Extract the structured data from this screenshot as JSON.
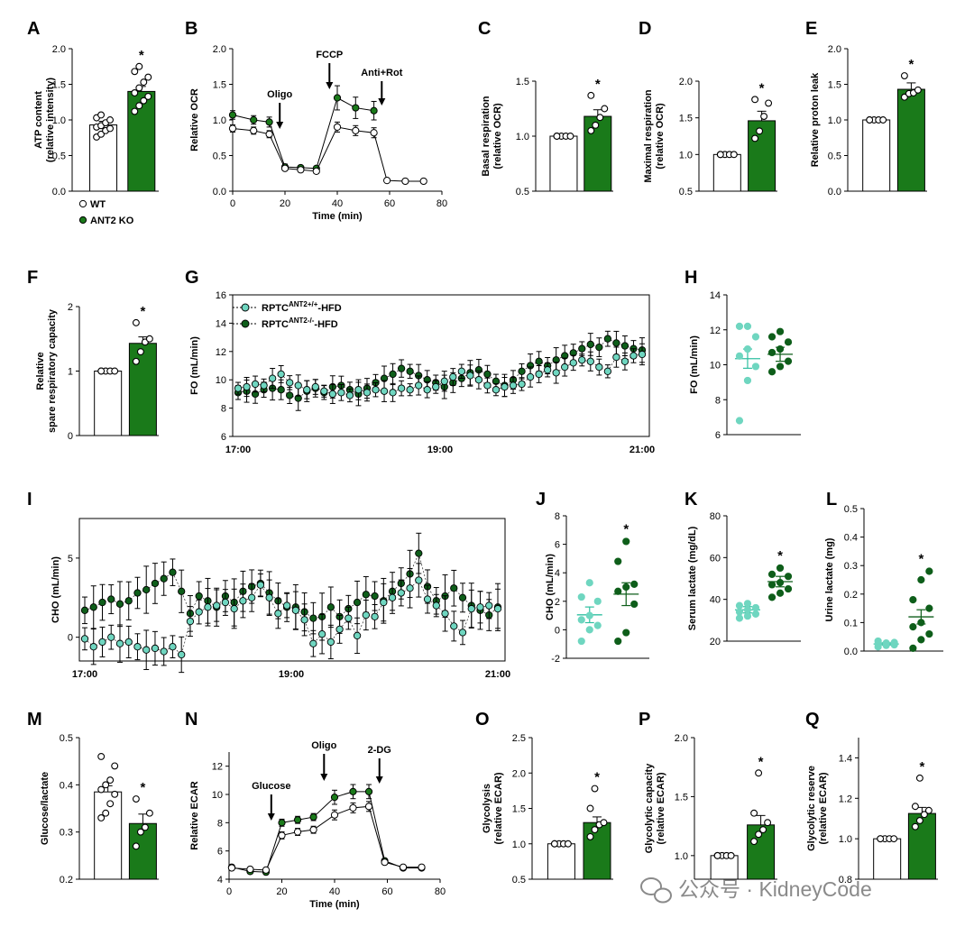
{
  "colors": {
    "wt_fill": "#ffffff",
    "ko_fill": "#1a7a1a",
    "light_green": "#6fd6c0",
    "dark_green": "#0e5e1a",
    "axis": "#000000",
    "watermark": "#8a8a8a"
  },
  "legend_A": {
    "wt": "WT",
    "ko": "ANT2 KO"
  },
  "legend_G": {
    "a_base": "RPTC",
    "a_sup": "ANT2+/+",
    "a_suf": "-HFD",
    "b_base": "RPTC",
    "b_sup": "ANT2-/-",
    "b_suf": "-HFD"
  },
  "watermark": "公众号 · KidneyCode",
  "chart_data": [
    {
      "panel": "A",
      "type": "bar",
      "ylabel": "ATP content\n(relative intensity)",
      "ylim": [
        0,
        2.0
      ],
      "yticks": [
        "0.0",
        "0.5",
        "1.0",
        "1.5",
        "2.0"
      ],
      "categories": [
        "WT",
        "ANT2 KO"
      ],
      "values": [
        0.93,
        1.4
      ],
      "errors": [
        0.05,
        0.07
      ],
      "points": [
        [
          0.76,
          0.8,
          0.85,
          0.88,
          0.9,
          0.92,
          0.96,
          1.0,
          1.03,
          1.07
        ],
        [
          1.12,
          1.2,
          1.27,
          1.33,
          1.38,
          1.45,
          1.53,
          1.6,
          1.68,
          1.75
        ]
      ],
      "significance": "*"
    },
    {
      "panel": "B",
      "type": "line",
      "title": "",
      "xlabel": "Time (min)",
      "ylabel": "Relative OCR",
      "xlim": [
        0,
        80
      ],
      "ylim": [
        0,
        2.0
      ],
      "xticks": [
        "0",
        "20",
        "40",
        "60",
        "80"
      ],
      "yticks": [
        "0.0",
        "0.5",
        "1.0",
        "1.5",
        "2.0"
      ],
      "annotations": [
        "Oligo",
        "FCCP",
        "Anti+Rot"
      ],
      "series": [
        {
          "name": "WT",
          "x": [
            0,
            8,
            14,
            20,
            26,
            32,
            40,
            47,
            54,
            59,
            66,
            73
          ],
          "y": [
            0.88,
            0.85,
            0.8,
            0.32,
            0.3,
            0.28,
            0.9,
            0.85,
            0.82,
            0.15,
            0.14,
            0.14
          ],
          "err": [
            0.05,
            0.05,
            0.05,
            0.03,
            0.03,
            0.03,
            0.07,
            0.07,
            0.07,
            0.02,
            0.02,
            0.02
          ]
        },
        {
          "name": "ANT2 KO",
          "x": [
            0,
            8,
            14,
            20,
            26,
            32,
            40,
            47,
            54
          ],
          "y": [
            1.07,
            1.0,
            0.97,
            0.34,
            0.33,
            0.32,
            1.31,
            1.17,
            1.13
          ],
          "err": [
            0.06,
            0.06,
            0.07,
            0.04,
            0.03,
            0.03,
            0.17,
            0.15,
            0.13
          ]
        }
      ]
    },
    {
      "panel": "C",
      "type": "bar",
      "ylabel": "Basal respiration\n(relative OCR)",
      "ylim": [
        0.5,
        1.5
      ],
      "yticks": [
        "0.5",
        "1.0",
        "1.5"
      ],
      "categories": [
        "WT",
        "ANT2 KO"
      ],
      "values": [
        1.0,
        1.18
      ],
      "errors": [
        0.0,
        0.06
      ],
      "points": [
        [
          1,
          1,
          1,
          1,
          1
        ],
        [
          1.05,
          1.1,
          1.17,
          1.25,
          1.37
        ]
      ],
      "significance": "*"
    },
    {
      "panel": "D",
      "type": "bar",
      "ylabel": "Maximal respiration\n(relative OCR)",
      "ylim": [
        0.5,
        2.0
      ],
      "yticks": [
        "0.5",
        "1.0",
        "1.5",
        "2.0"
      ],
      "categories": [
        "WT",
        "ANT2 KO"
      ],
      "values": [
        1.0,
        1.46
      ],
      "errors": [
        0.0,
        0.13
      ],
      "points": [
        [
          1,
          1,
          1,
          1,
          1
        ],
        [
          1.22,
          1.32,
          1.52,
          1.7,
          1.75
        ]
      ],
      "significance": "*"
    },
    {
      "panel": "E",
      "type": "bar",
      "ylabel": "Relative proton leak",
      "ylim": [
        0,
        2.0
      ],
      "yticks": [
        "0.0",
        "0.5",
        "1.0",
        "1.5",
        "2.0"
      ],
      "categories": [
        "WT",
        "ANT2 KO"
      ],
      "values": [
        1.0,
        1.43
      ],
      "errors": [
        0.0,
        0.09
      ],
      "points": [
        [
          1,
          1,
          1,
          1,
          1
        ],
        [
          1.32,
          1.37,
          1.38,
          1.42,
          1.62
        ]
      ],
      "significance": "*"
    },
    {
      "panel": "F",
      "type": "bar",
      "ylabel": "Relative\nspare respiratory capacity",
      "ylim": [
        0,
        2
      ],
      "yticks": [
        "0",
        "1",
        "2"
      ],
      "categories": [
        "WT",
        "ANT2 KO"
      ],
      "values": [
        1.0,
        1.43
      ],
      "errors": [
        0.0,
        0.1
      ],
      "points": [
        [
          1,
          1,
          1,
          1,
          1
        ],
        [
          1.15,
          1.3,
          1.45,
          1.5,
          1.75
        ]
      ],
      "significance": "*"
    },
    {
      "panel": "G",
      "type": "line",
      "ylabel": "FO (mL/min)",
      "ylim": [
        6,
        16
      ],
      "yticks": [
        "6",
        "8",
        "10",
        "12",
        "14",
        "16"
      ],
      "xticks": [
        "17:00",
        "19:00",
        "21:00"
      ],
      "xtick_pos": [
        0,
        120,
        240
      ],
      "xlim": [
        0,
        240
      ],
      "series_seed": {
        "n": 48,
        "dt": 5
      },
      "series": [
        {
          "name": "RPTC ANT2+/+ -HFD",
          "y": [
            9.4,
            9.5,
            9.7,
            9.6,
            10.1,
            10.4,
            9.8,
            9.6,
            9.3,
            9.5,
            9.2,
            9.0,
            9.1,
            8.9,
            9.3,
            9.1,
            9.3,
            9.2,
            9.1,
            9.4,
            9.3,
            9.6,
            9.3,
            9.5,
            9.9,
            10.2,
            10.6,
            10.3,
            10.0,
            9.6,
            9.3,
            9.5,
            9.6,
            9.7,
            10.2,
            10.4,
            10.7,
            10.5,
            10.9,
            11.2,
            11.4,
            11.3,
            10.9,
            10.6,
            11.6,
            11.3,
            11.7,
            11.8
          ],
          "err": 0.6
        },
        {
          "name": "RPTC ANT2-/- -HFD",
          "y": [
            9.1,
            9.2,
            9.0,
            9.3,
            9.4,
            9.3,
            8.9,
            8.7,
            9.2,
            9.4,
            9.1,
            9.5,
            9.6,
            9.3,
            9.0,
            9.4,
            9.8,
            10.1,
            10.4,
            10.8,
            10.6,
            10.3,
            10.0,
            9.8,
            9.5,
            9.8,
            10.1,
            10.5,
            10.7,
            10.4,
            9.9,
            9.6,
            10.0,
            10.6,
            11.0,
            11.3,
            11.0,
            11.4,
            11.7,
            11.9,
            12.2,
            12.5,
            12.3,
            12.9,
            12.6,
            12.4,
            12.2,
            12.1
          ],
          "err": 0.7
        }
      ]
    },
    {
      "panel": "H",
      "type": "scatter",
      "ylabel": "FO (mL/min)",
      "ylim": [
        6,
        14
      ],
      "yticks": [
        "6",
        "8",
        "10",
        "12",
        "14"
      ],
      "categories": [
        "RPTC ANT2+/+ -HFD",
        "RPTC ANT2-/- -HFD"
      ],
      "means": [
        10.35,
        10.6
      ],
      "errors": [
        0.55,
        0.4
      ],
      "points": [
        [
          6.8,
          9.1,
          9.9,
          10.5,
          10.9,
          11.6,
          12.2,
          12.2
        ],
        [
          9.6,
          9.9,
          10.2,
          10.7,
          10.9,
          11.3,
          11.6,
          11.9
        ]
      ]
    },
    {
      "panel": "I",
      "type": "line",
      "ylabel": "CHO (mL/min)",
      "ylim": [
        -1.5,
        7.5
      ],
      "yticks": [
        "0",
        "5"
      ],
      "xticks": [
        "17:00",
        "19:00",
        "21:00"
      ],
      "xtick_pos": [
        0,
        120,
        240
      ],
      "xlim": [
        0,
        240
      ],
      "series": [
        {
          "name": "RPTC ANT2+/+ -HFD",
          "y": [
            -0.1,
            -0.6,
            -0.3,
            0.0,
            -0.4,
            -0.3,
            -0.6,
            -0.8,
            -0.7,
            -0.9,
            -0.6,
            -1.1,
            1.0,
            1.6,
            1.9,
            2.0,
            2.2,
            1.8,
            2.3,
            2.5,
            3.3,
            2.5,
            1.5,
            2.0,
            1.7,
            1.1,
            -0.4,
            0.2,
            -0.3,
            0.5,
            1.2,
            0.1,
            1.4,
            1.3,
            2.2,
            2.5,
            2.8,
            3.1,
            3.6,
            2.4,
            2.0,
            1.5,
            0.7,
            0.3,
            1.8,
            1.9,
            2.0,
            1.8
          ],
          "err": 1.0
        },
        {
          "name": "RPTC ANT2-/- -HFD",
          "y": [
            1.7,
            1.9,
            2.2,
            2.4,
            2.1,
            2.3,
            2.8,
            3.0,
            3.4,
            3.7,
            4.1,
            2.9,
            1.5,
            2.6,
            2.3,
            1.9,
            2.6,
            2.2,
            2.9,
            3.2,
            3.4,
            2.8,
            2.3,
            1.9,
            1.9,
            1.6,
            1.2,
            1.3,
            1.9,
            1.3,
            1.8,
            2.2,
            2.7,
            2.6,
            2.3,
            2.9,
            3.4,
            4.0,
            5.3,
            3.2,
            2.3,
            2.6,
            3.1,
            2.5,
            2.0,
            1.7,
            1.4,
            1.9
          ],
          "err": 1.2
        }
      ]
    },
    {
      "panel": "J",
      "type": "scatter",
      "ylabel": "CHO (mL/min)",
      "ylim": [
        -2,
        8
      ],
      "yticks": [
        "-2",
        "0",
        "2",
        "4",
        "6",
        "8"
      ],
      "categories": [
        "RPTC ANT2+/+ -HFD",
        "RPTC ANT2-/- -HFD"
      ],
      "means": [
        1.05,
        2.5
      ],
      "errors": [
        0.55,
        0.8
      ],
      "points": [
        [
          -0.8,
          0.0,
          0.3,
          0.7,
          1.0,
          2.0,
          2.3,
          3.3
        ],
        [
          -0.8,
          -0.2,
          1.8,
          2.7,
          3.0,
          3.2,
          4.8,
          6.2
        ]
      ],
      "significance": "*"
    },
    {
      "panel": "K",
      "type": "scatter",
      "ylabel": "Serum lactate (mg/dL)",
      "ylim": [
        20,
        80
      ],
      "yticks": [
        "20",
        "40",
        "60",
        "80"
      ],
      "categories": [
        "RPTC ANT2+/+ -HFD",
        "RPTC ANT2-/- -HFD"
      ],
      "means": [
        35.0,
        48.5
      ],
      "errors": [
        1.5,
        2.5
      ],
      "points": [
        [
          31,
          32,
          33,
          34,
          35,
          36,
          37,
          38
        ],
        [
          41,
          43,
          45,
          47,
          48,
          51,
          52,
          55
        ]
      ],
      "significance": "*"
    },
    {
      "panel": "L",
      "type": "scatter",
      "ylabel": "Urine lactate (mg)",
      "ylim": [
        0,
        0.5
      ],
      "yticks": [
        "0.0",
        "0.1",
        "0.2",
        "0.3",
        "0.4",
        "0.5"
      ],
      "categories": [
        "RPTC ANT2+/+ -HFD",
        "RPTC ANT2-/- -HFD"
      ],
      "means": [
        0.025,
        0.12
      ],
      "errors": [
        0.004,
        0.025
      ],
      "points": [
        [
          0.015,
          0.02,
          0.022,
          0.025,
          0.028,
          0.03,
          0.035
        ],
        [
          0.01,
          0.04,
          0.06,
          0.085,
          0.1,
          0.15,
          0.18,
          0.25,
          0.28
        ]
      ],
      "significance": "*"
    },
    {
      "panel": "M",
      "type": "bar",
      "ylabel": "Glucose/lactate",
      "ylim": [
        0.2,
        0.5
      ],
      "yticks": [
        "0.2",
        "0.3",
        "0.4",
        "0.5"
      ],
      "categories": [
        "WT",
        "ANT2 KO"
      ],
      "values": [
        0.385,
        0.318
      ],
      "errors": [
        0.013,
        0.02
      ],
      "points": [
        [
          0.33,
          0.34,
          0.36,
          0.38,
          0.39,
          0.4,
          0.41,
          0.44,
          0.46
        ],
        [
          0.27,
          0.3,
          0.31,
          0.34,
          0.37
        ]
      ],
      "significance": "*"
    },
    {
      "panel": "N",
      "type": "line",
      "xlabel": "Time (min)",
      "ylabel": "Relative ECAR",
      "xlim": [
        0,
        80
      ],
      "ylim": [
        4,
        13
      ],
      "xticks": [
        "0",
        "20",
        "40",
        "60",
        "80"
      ],
      "yticks": [
        "4",
        "6",
        "8",
        "10",
        "12"
      ],
      "annotations": [
        "Glucose",
        "Oligo",
        "2-DG"
      ],
      "series": [
        {
          "name": "WT",
          "x": [
            1,
            8,
            14,
            20,
            26,
            32,
            40,
            47,
            53,
            59,
            66,
            73
          ],
          "y": [
            4.8,
            4.7,
            4.65,
            7.1,
            7.35,
            7.5,
            8.55,
            9.05,
            9.15,
            5.2,
            4.85,
            4.85
          ],
          "err": [
            0.15,
            0.15,
            0.15,
            0.25,
            0.25,
            0.25,
            0.35,
            0.35,
            0.35,
            0.15,
            0.12,
            0.12
          ]
        },
        {
          "name": "ANT2 KO",
          "x": [
            1,
            8,
            14,
            20,
            26,
            32,
            40,
            47,
            53,
            59,
            66,
            73
          ],
          "y": [
            4.85,
            4.55,
            4.5,
            8.0,
            8.2,
            8.4,
            9.8,
            10.2,
            10.2,
            5.3,
            4.8,
            4.8
          ],
          "err": [
            0.15,
            0.15,
            0.15,
            0.25,
            0.25,
            0.25,
            0.5,
            0.5,
            0.5,
            0.15,
            0.12,
            0.12
          ]
        }
      ]
    },
    {
      "panel": "O",
      "type": "bar",
      "ylabel": "Glycolysis\n(relative ECAR)",
      "ylim": [
        0.5,
        2.5
      ],
      "yticks": [
        "0.5",
        "1.0",
        "1.5",
        "2.0",
        "2.5"
      ],
      "categories": [
        "WT",
        "ANT2 KO"
      ],
      "values": [
        1.0,
        1.3
      ],
      "errors": [
        0.0,
        0.08
      ],
      "points": [
        [
          1,
          1,
          1,
          1,
          1
        ],
        [
          1.1,
          1.2,
          1.27,
          1.3,
          1.5,
          1.78
        ]
      ],
      "significance": "*"
    },
    {
      "panel": "P",
      "type": "bar",
      "ylabel": "Glycolytic capacity\n(relative ECAR)",
      "ylim": [
        0.8,
        2.0
      ],
      "yticks": [
        "1.0",
        "1.5",
        "2.0"
      ],
      "categories": [
        "WT",
        "ANT2 KO"
      ],
      "values": [
        1.0,
        1.26
      ],
      "errors": [
        0.0,
        0.08
      ],
      "points": [
        [
          1,
          1,
          1,
          1,
          1
        ],
        [
          1.12,
          1.18,
          1.22,
          1.28,
          1.36,
          1.7
        ]
      ],
      "significance": "*"
    },
    {
      "panel": "Q",
      "type": "bar",
      "ylabel": "Glycolytic reserve\n(relative ECAR)",
      "ylim": [
        0.8,
        1.5
      ],
      "yticks": [
        "0.8",
        "1.0",
        "1.2",
        "1.4"
      ],
      "categories": [
        "WT",
        "ANT2 KO"
      ],
      "values": [
        1.0,
        1.125
      ],
      "errors": [
        0.0,
        0.03
      ],
      "points": [
        [
          1,
          1,
          1,
          1,
          1
        ],
        [
          1.06,
          1.09,
          1.12,
          1.14,
          1.16,
          1.3
        ]
      ],
      "significance": "*"
    }
  ]
}
